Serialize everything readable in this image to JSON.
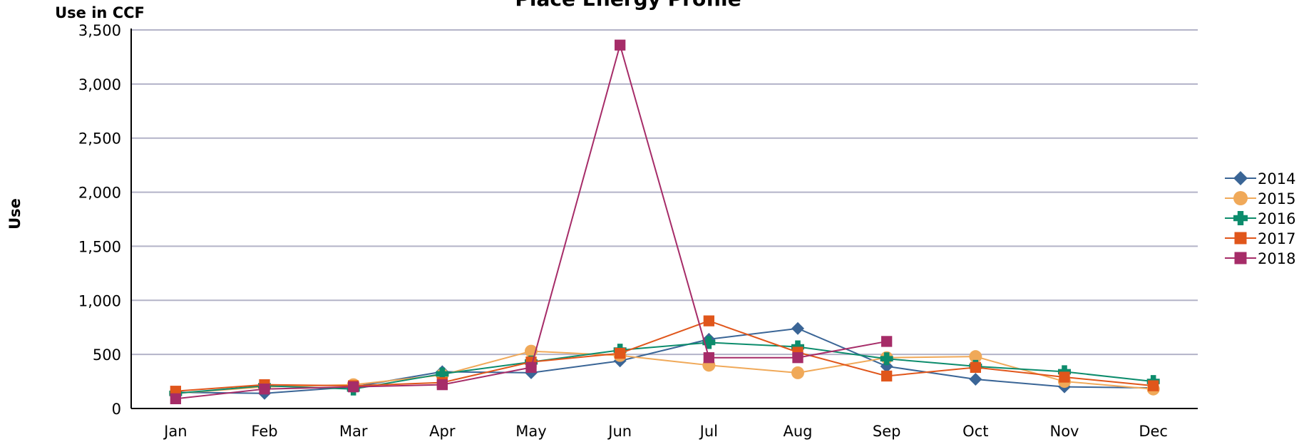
{
  "chart_data": {
    "type": "line",
    "title": "Place Energy Profile",
    "unit_label": "Use in CCF",
    "ylabel": "Use",
    "xlabel": "",
    "categories": [
      "Jan",
      "Feb",
      "Mar",
      "Apr",
      "May",
      "Jun",
      "Jul",
      "Aug",
      "Sep",
      "Oct",
      "Nov",
      "Dec"
    ],
    "ylim": [
      0,
      3500
    ],
    "yticks": [
      0,
      500,
      1000,
      1500,
      2000,
      2500,
      3000,
      3500
    ],
    "ytick_labels": [
      "0",
      "500",
      "1,000",
      "1,500",
      "2,000",
      "2,500",
      "3,000",
      "3,500"
    ],
    "grid": true,
    "legend_position": "right",
    "series": [
      {
        "name": "2014",
        "color": "#3a6596",
        "marker": "diamond",
        "values": [
          150,
          140,
          200,
          340,
          330,
          440,
          640,
          740,
          390,
          270,
          200,
          190
        ]
      },
      {
        "name": "2015",
        "color": "#f0a959",
        "marker": "circle",
        "values": [
          140,
          200,
          220,
          310,
          530,
          490,
          400,
          330,
          470,
          480,
          250,
          180
        ]
      },
      {
        "name": "2016",
        "color": "#0c8c6c",
        "marker": "plus",
        "values": [
          140,
          210,
          180,
          320,
          430,
          540,
          610,
          570,
          460,
          390,
          340,
          250
        ]
      },
      {
        "name": "2017",
        "color": "#e0561b",
        "marker": "square",
        "values": [
          160,
          220,
          210,
          240,
          430,
          510,
          810,
          520,
          300,
          380,
          290,
          210
        ]
      },
      {
        "name": "2018",
        "color": "#a62c68",
        "marker": "square",
        "values": [
          90,
          180,
          200,
          220,
          380,
          3360,
          470,
          470,
          620,
          null,
          null,
          null
        ]
      }
    ]
  }
}
